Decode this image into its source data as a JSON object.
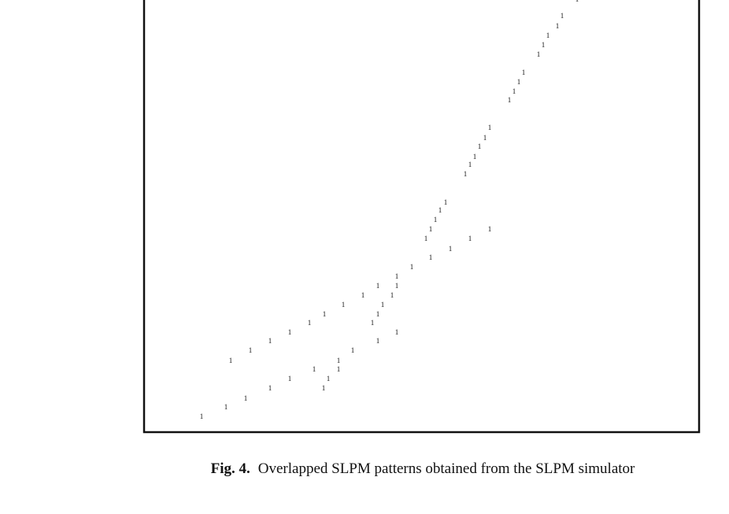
{
  "chart_data": {
    "type": "scatter",
    "marker": "1",
    "x": [
      73,
      104,
      129,
      160,
      185,
      216,
      228,
      234,
      247,
      247,
      265,
      297,
      321,
      290,
      297,
      303,
      315,
      321,
      321,
      110,
      135,
      160,
      185,
      210,
      229,
      253,
      278,
      297,
      340,
      364,
      389,
      414,
      439,
      358,
      364,
      370,
      376,
      383,
      408,
      414,
      420,
      426,
      433,
      439,
      464,
      470,
      476,
      482,
      501,
      507,
      513,
      525,
      531,
      550
    ],
    "y": [
      19,
      31,
      42,
      55,
      67,
      79,
      55,
      67,
      79,
      90,
      103,
      115,
      126,
      138,
      149,
      161,
      173,
      185,
      197,
      90,
      103,
      115,
      126,
      138,
      149,
      161,
      173,
      185,
      209,
      221,
      232,
      245,
      257,
      245,
      257,
      269,
      281,
      291,
      327,
      339,
      349,
      362,
      373,
      386,
      421,
      432,
      444,
      456,
      479,
      491,
      503,
      515,
      528,
      549
    ],
    "xlim": [
      0,
      705
    ],
    "ylim": [
      0,
      551
    ],
    "caption": {
      "label": "Fig. 4.",
      "text": "Overlapped SLPM patterns obtained from the SLPM simulator"
    }
  }
}
